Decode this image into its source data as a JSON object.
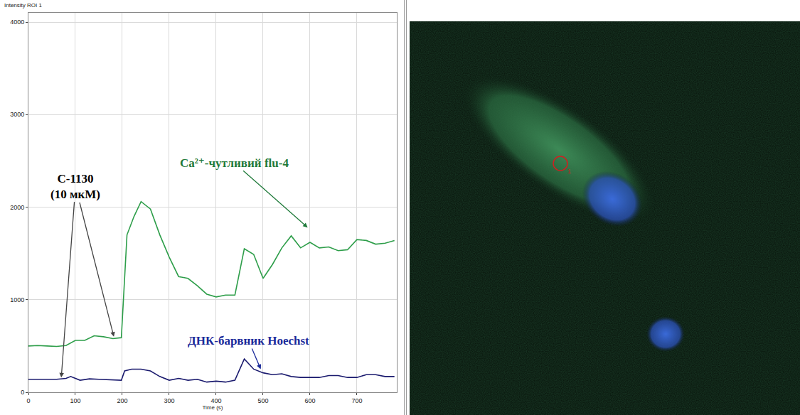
{
  "chart_data": {
    "type": "line",
    "y_label": "Intensity ROI 1",
    "x_label": "Time (s)",
    "xlim": [
      0,
      785
    ],
    "xticks": [
      0,
      100,
      200,
      300,
      400,
      500,
      600,
      700
    ],
    "ylim": [
      0,
      4100
    ],
    "yticks": [
      0,
      1000,
      2000,
      3000,
      4000
    ],
    "grid": true,
    "series": [
      {
        "name": "Ca²⁺-чутливий flu-4",
        "color": "#2e9e4a",
        "x": [
          0,
          20,
          40,
          60,
          80,
          100,
          120,
          140,
          160,
          180,
          198,
          210,
          225,
          240,
          260,
          280,
          300,
          320,
          340,
          360,
          380,
          400,
          420,
          440,
          460,
          480,
          500,
          520,
          540,
          560,
          580,
          600,
          620,
          640,
          660,
          680,
          700,
          720,
          740,
          760,
          780
        ],
        "values": [
          500,
          505,
          500,
          495,
          505,
          560,
          560,
          610,
          600,
          580,
          590,
          1700,
          1900,
          2060,
          1980,
          1700,
          1460,
          1250,
          1230,
          1150,
          1060,
          1030,
          1050,
          1050,
          1550,
          1490,
          1230,
          1380,
          1560,
          1690,
          1560,
          1620,
          1560,
          1570,
          1530,
          1540,
          1650,
          1640,
          1600,
          1610,
          1640
        ]
      },
      {
        "name": "ДНК-барвник Hoechst",
        "color": "#1a1a6e",
        "x": [
          0,
          20,
          40,
          60,
          80,
          90,
          110,
          130,
          150,
          170,
          198,
          205,
          220,
          240,
          260,
          280,
          300,
          320,
          340,
          360,
          380,
          400,
          420,
          440,
          460,
          480,
          500,
          520,
          540,
          560,
          580,
          600,
          620,
          640,
          660,
          680,
          700,
          720,
          740,
          760,
          780
        ],
        "values": [
          140,
          140,
          140,
          140,
          150,
          170,
          130,
          145,
          140,
          135,
          130,
          230,
          250,
          250,
          230,
          170,
          130,
          150,
          130,
          140,
          110,
          120,
          110,
          130,
          360,
          250,
          210,
          190,
          200,
          170,
          160,
          160,
          160,
          180,
          180,
          160,
          160,
          190,
          190,
          170,
          170
        ]
      }
    ],
    "annotations": [
      {
        "lines": [
          "C-1130",
          "(10 мкМ)"
        ],
        "color": "#000000",
        "points": [
          [
            70,
            160
          ],
          [
            182,
            600
          ]
        ]
      },
      {
        "lines": [
          "Ca²⁺-чутливий flu-4"
        ],
        "color": "#1f7a3a",
        "points": [
          [
            595,
            1780
          ]
        ]
      },
      {
        "lines": [
          "ДНК-барвник Hoechst"
        ],
        "color": "#1a2a9a",
        "points": [
          [
            495,
            250
          ]
        ]
      }
    ]
  },
  "image": {
    "roi_label": "1"
  }
}
